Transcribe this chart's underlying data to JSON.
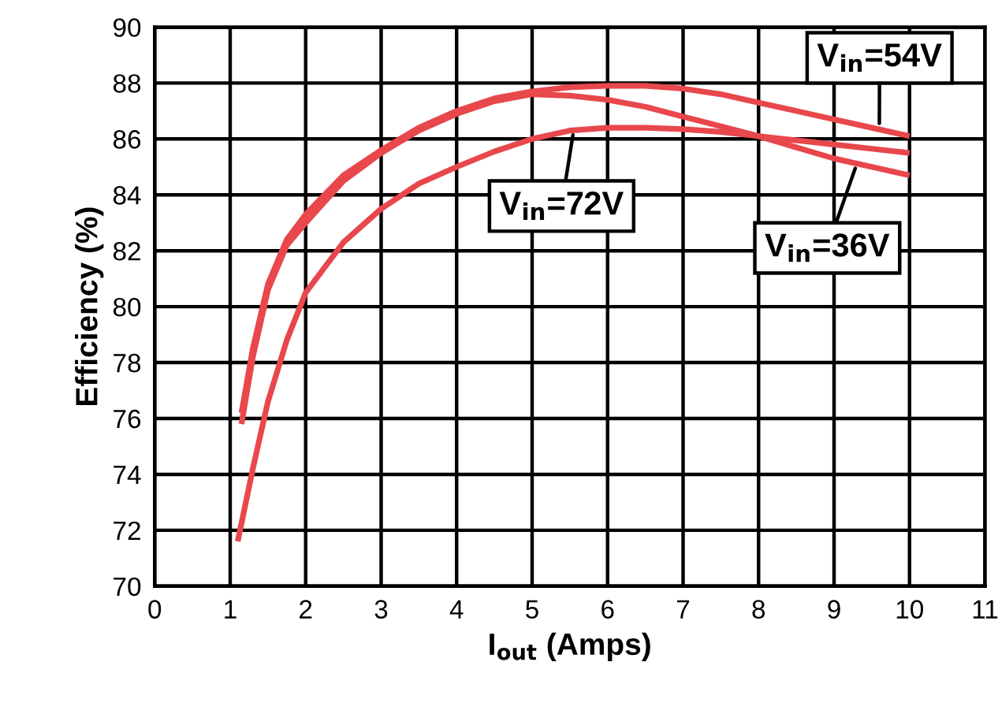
{
  "chart_data": {
    "type": "line",
    "xlabel": "I$_{out}$ (Amps)",
    "ylabel": "Efficiency (%)",
    "xlim": [
      0,
      11
    ],
    "xticks": [
      0,
      1,
      2,
      3,
      4,
      5,
      6,
      7,
      8,
      9,
      10,
      11
    ],
    "ylim": [
      70,
      90
    ],
    "yticks": [
      70,
      72,
      74,
      76,
      78,
      80,
      82,
      84,
      86,
      88,
      90
    ],
    "grid": true,
    "legend": false,
    "marker": "none",
    "line_style": "solid",
    "series": [
      {
        "color": "#e8474c",
        "x": [
          1.15,
          1.3,
          1.5,
          1.75,
          2,
          2.5,
          3,
          3.5,
          4,
          4.5,
          5,
          5.5,
          6,
          6.5,
          7,
          7.5,
          8,
          8.5,
          9,
          9.5,
          10
        ],
        "values": [
          76.2,
          78.5,
          80.8,
          82.4,
          83.3,
          84.7,
          85.6,
          86.4,
          87.0,
          87.45,
          87.7,
          87.85,
          87.9,
          87.9,
          87.8,
          87.6,
          87.3,
          87.0,
          86.7,
          86.4,
          86.1
        ]
      },
      {
        "color": "#e8474c",
        "x": [
          1.15,
          1.3,
          1.5,
          1.75,
          2,
          2.5,
          3,
          3.5,
          4,
          4.5,
          5,
          5.5,
          6,
          6.5,
          7,
          7.5,
          8,
          8.5,
          9,
          9.5,
          10
        ],
        "values": [
          75.8,
          78.2,
          80.6,
          82.2,
          83.0,
          84.5,
          85.5,
          86.3,
          86.9,
          87.35,
          87.6,
          87.55,
          87.4,
          87.15,
          86.8,
          86.45,
          86.1,
          85.7,
          85.3,
          85.0,
          84.7
        ]
      },
      {
        "color": "#e8474c",
        "x": [
          1.1,
          1.3,
          1.5,
          1.75,
          2,
          2.5,
          3,
          3.5,
          4,
          4.5,
          5,
          5.5,
          6,
          6.5,
          7,
          7.5,
          8,
          8.5,
          9,
          9.5,
          10
        ],
        "values": [
          71.6,
          74.2,
          76.6,
          78.8,
          80.5,
          82.3,
          83.5,
          84.4,
          85.0,
          85.55,
          86.0,
          86.3,
          86.4,
          86.4,
          86.35,
          86.25,
          86.1,
          85.95,
          85.8,
          85.65,
          85.5
        ]
      }
    ],
    "annotations": [
      {
        "text": "V$_{in}$=54V",
        "x": 9.6,
        "y": 86.4
      },
      {
        "text": "V$_{in}$=72V",
        "x": 5.55,
        "y": 86.3
      },
      {
        "text": "V$_{in}$=36V",
        "x": 9.3,
        "y": 85.1
      }
    ]
  }
}
